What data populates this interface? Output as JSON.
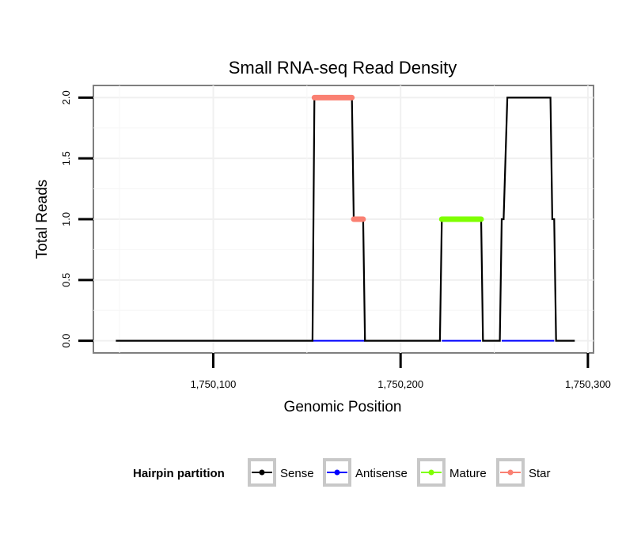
{
  "chart_data": {
    "type": "line",
    "title": "Small RNA-seq Read Density",
    "xlabel": "Genomic Position",
    "ylabel": "Total Reads",
    "xlim": [
      1750036,
      1750303
    ],
    "ylim": [
      -0.1,
      2.1
    ],
    "x_ticks": [
      1750100,
      1750200,
      1750300
    ],
    "x_tick_labels": [
      "1,750,100",
      "1,750,200",
      "1,750,300"
    ],
    "y_ticks": [
      0,
      0.5,
      1,
      1.5,
      2
    ],
    "y_tick_labels": [
      "0.0",
      "0.5",
      "1.0",
      "1.5",
      "2.0"
    ],
    "grid": true,
    "legend": {
      "title": "Hairpin partition",
      "position": "bottom",
      "entries": [
        {
          "label": "Sense",
          "color": "#000000"
        },
        {
          "label": "Antisense",
          "color": "#0000ff"
        },
        {
          "label": "Mature",
          "color": "#7fff00"
        },
        {
          "label": "Star",
          "color": "#fa8072"
        }
      ]
    },
    "series": [
      {
        "name": "Sense",
        "color": "#000000",
        "x": [
          1750048,
          1750153,
          1750154,
          1750174,
          1750175,
          1750180,
          1750181,
          1750221,
          1750222,
          1750243,
          1750244,
          1750253,
          1750254,
          1750255,
          1750257,
          1750280,
          1750281,
          1750282,
          1750283,
          1750293
        ],
        "y": [
          0,
          0,
          2,
          2,
          1,
          1,
          0,
          0,
          1,
          1,
          0,
          0,
          1,
          1,
          2,
          2,
          1,
          1,
          0,
          0
        ]
      },
      {
        "name": "Antisense",
        "color": "#0000ff",
        "x": [
          1750153,
          1750181,
          1750222,
          1750243,
          1750254,
          1750282
        ],
        "y": [
          0,
          0,
          0,
          0,
          0,
          0
        ],
        "segments": [
          [
            1750153,
            1750181
          ],
          [
            1750222,
            1750243
          ],
          [
            1750254,
            1750282
          ]
        ]
      },
      {
        "name": "Mature",
        "color": "#7fff00",
        "x": [
          1750222,
          1750243
        ],
        "y": [
          1,
          1
        ]
      },
      {
        "name": "Star",
        "color": "#fa8072",
        "segments": [
          {
            "x": [
              1750154,
              1750174
            ],
            "y": 2
          },
          {
            "x": [
              1750175,
              1750180
            ],
            "y": 1
          }
        ]
      }
    ]
  }
}
